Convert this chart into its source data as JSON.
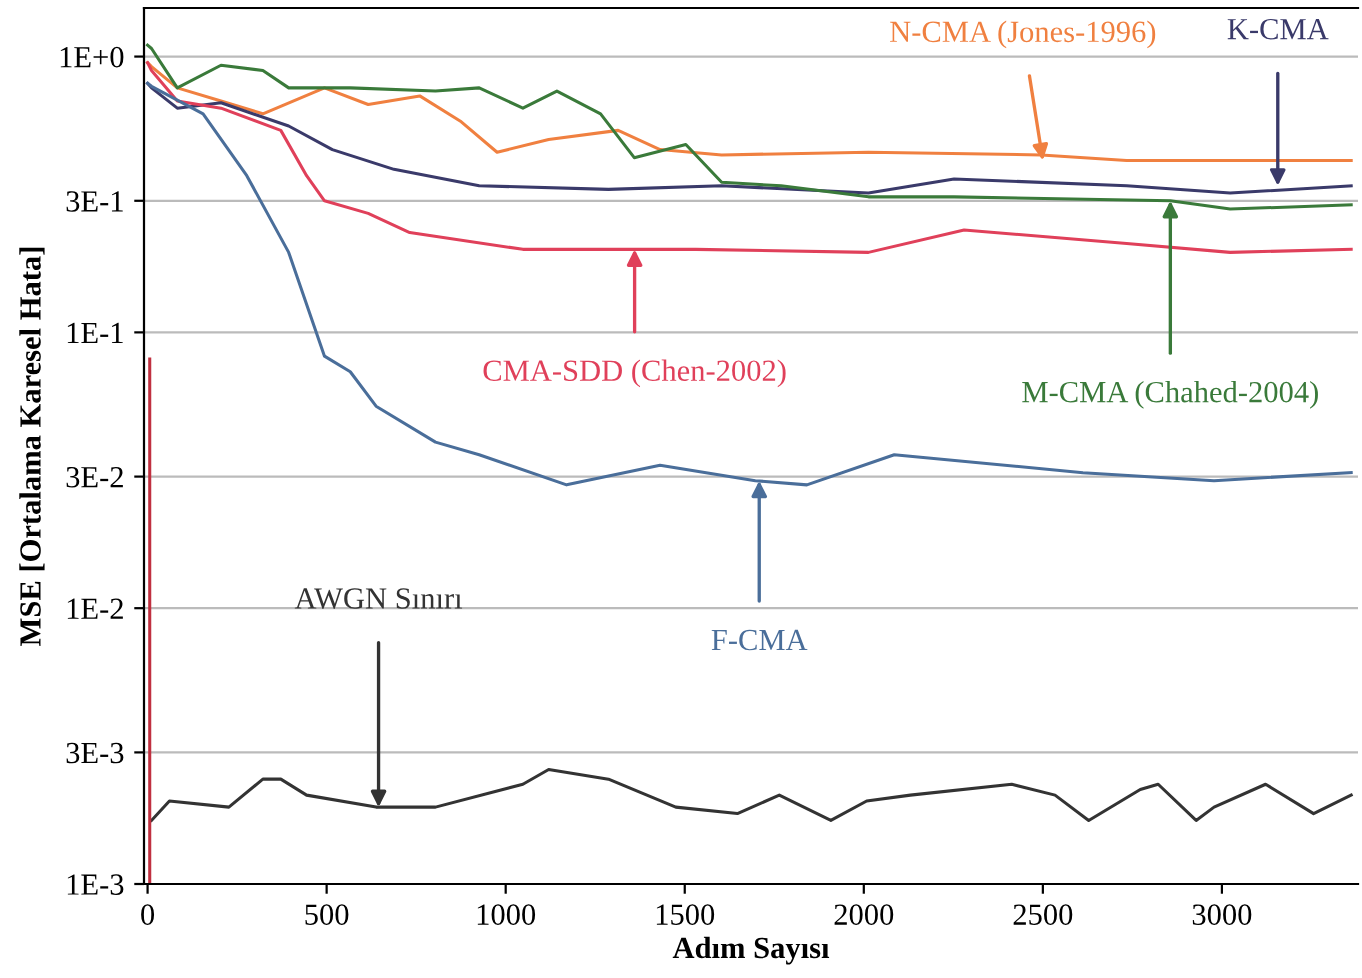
{
  "chart_data": {
    "type": "line",
    "xlabel": "Adım Sayısı",
    "ylabel": "MSE [Ortalama Karesel Hata]",
    "log": "y",
    "grid": "y",
    "legend": false,
    "line_style": "solid",
    "marker": "none",
    "xlim": [
      -10,
      3380
    ],
    "xticks": [
      0,
      500,
      1000,
      1500,
      2000,
      2500,
      3000
    ],
    "ylim": [
      0.001,
      1.5
    ],
    "yticks": [
      {
        "value": 1,
        "label": "1E+0"
      },
      {
        "value": 0.3,
        "label": "3E-1"
      },
      {
        "value": 0.1,
        "label": "1E-1"
      },
      {
        "value": 0.03,
        "label": "3E-2"
      },
      {
        "value": 0.01,
        "label": "1E-2"
      },
      {
        "value": 0.003,
        "label": "3E-3"
      },
      {
        "value": 0.001,
        "label": "1E-3"
      }
    ],
    "series": [
      {
        "color": "#f08040",
        "x": [
          0,
          11,
          83,
          205,
          322,
          494,
          616,
          760,
          876,
          976,
          1120,
          1314,
          1431,
          1603,
          2013,
          2496,
          2734,
          3361
        ],
        "values": [
          0.95,
          0.92,
          0.77,
          0.69,
          0.62,
          0.77,
          0.67,
          0.72,
          0.58,
          0.45,
          0.5,
          0.54,
          0.46,
          0.44,
          0.45,
          0.44,
          0.42,
          0.42
        ]
      },
      {
        "color": "#3a3a6a",
        "x": [
          0,
          11,
          83,
          205,
          394,
          516,
          688,
          926,
          1287,
          1603,
          2013,
          2252,
          2734,
          3023,
          3361
        ],
        "values": [
          0.8,
          0.77,
          0.65,
          0.68,
          0.56,
          0.46,
          0.39,
          0.34,
          0.33,
          0.34,
          0.32,
          0.36,
          0.34,
          0.32,
          0.34
        ]
      },
      {
        "color": "#e0405a",
        "x": [
          0,
          11,
          83,
          205,
          372,
          444,
          494,
          616,
          732,
          1048,
          1531,
          2013,
          2280,
          2734,
          3023,
          3361
        ],
        "values": [
          0.95,
          0.89,
          0.69,
          0.65,
          0.54,
          0.37,
          0.3,
          0.27,
          0.23,
          0.2,
          0.2,
          0.195,
          0.235,
          0.21,
          0.195,
          0.2
        ]
      },
      {
        "color": "#3a7a3a",
        "x": [
          0,
          11,
          83,
          205,
          322,
          394,
          566,
          804,
          926,
          1048,
          1143,
          1265,
          1359,
          1503,
          1603,
          1769,
          2013,
          2252,
          2856,
          3023,
          3361
        ],
        "values": [
          1.1,
          1.07,
          0.77,
          0.93,
          0.89,
          0.77,
          0.77,
          0.75,
          0.77,
          0.65,
          0.75,
          0.62,
          0.43,
          0.48,
          0.35,
          0.34,
          0.31,
          0.31,
          0.3,
          0.28,
          0.29
        ]
      },
      {
        "color": "#4a6e9a",
        "x": [
          0,
          11,
          155,
          277,
          394,
          494,
          566,
          638,
          804,
          926,
          1170,
          1431,
          1697,
          1841,
          2085,
          2612,
          2978,
          3361
        ],
        "values": [
          0.8,
          0.78,
          0.62,
          0.37,
          0.195,
          0.082,
          0.072,
          0.054,
          0.04,
          0.036,
          0.028,
          0.033,
          0.029,
          0.028,
          0.036,
          0.031,
          0.029,
          0.031
        ]
      },
      {
        "color": "#333333",
        "x": [
          11,
          61,
          227,
          322,
          372,
          444,
          638,
          804,
          1048,
          1120,
          1287,
          1475,
          1647,
          1764,
          1908,
          2008,
          2130,
          2413,
          2534,
          2628,
          2772,
          2822,
          2928,
          2978,
          3122,
          3256,
          3361
        ],
        "values": [
          0.0017,
          0.002,
          0.0019,
          0.0024,
          0.0024,
          0.0021,
          0.0019,
          0.0019,
          0.0023,
          0.0026,
          0.0024,
          0.0019,
          0.0018,
          0.0021,
          0.0017,
          0.002,
          0.0021,
          0.0023,
          0.0021,
          0.0017,
          0.0022,
          0.0023,
          0.0017,
          0.0019,
          0.0023,
          0.0018,
          0.0021
        ]
      },
      {
        "color": "#c03040",
        "x": [
          6,
          6
        ],
        "values": [
          0.08,
          0.001
        ]
      }
    ],
    "annotations": [
      {
        "text": "N-CMA (Jones-1996)",
        "x": 2500,
        "y": 0.42
      },
      {
        "text": "K-CMA",
        "x": 3156,
        "y": 0.34
      },
      {
        "text": "CMA-SDD (Chen-2002)",
        "x": 1360,
        "y": 0.2
      },
      {
        "text": "M-CMA (Chahed-2004)",
        "x": 2856,
        "y": 0.3
      },
      {
        "text": "F-CMA",
        "x": 1708,
        "y": 0.029
      },
      {
        "text": "AWGN Sınırı",
        "x": 645,
        "y": 0.0019
      }
    ]
  }
}
